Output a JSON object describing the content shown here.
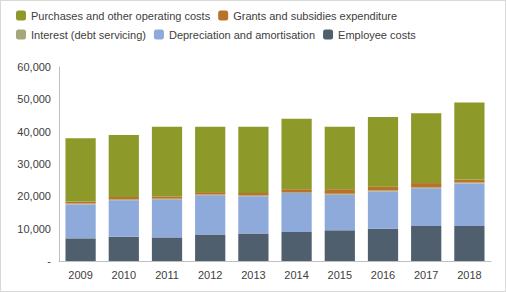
{
  "chart_data": {
    "type": "bar",
    "stacked": true,
    "grid": false,
    "legend": "top",
    "categories": [
      "2009",
      "2010",
      "2011",
      "2012",
      "2013",
      "2014",
      "2015",
      "2016",
      "2017",
      "2018"
    ],
    "series": [
      {
        "name": "Employee costs",
        "color": "#505f6e",
        "values": [
          7000,
          7500,
          7300,
          8200,
          8500,
          9000,
          9500,
          10000,
          10800,
          10800
        ]
      },
      {
        "name": "Depreciation and amortisation",
        "color": "#8eaadb",
        "values": [
          10500,
          11300,
          11700,
          12100,
          11500,
          12000,
          11000,
          11500,
          11700,
          13200
        ]
      },
      {
        "name": "Interest (debt servicing)",
        "color": "#a5a77a",
        "values": [
          300,
          300,
          300,
          300,
          300,
          300,
          300,
          300,
          300,
          300
        ]
      },
      {
        "name": "Grants and subsidies expenditure",
        "color": "#b8722a",
        "values": [
          600,
          700,
          700,
          700,
          700,
          900,
          1400,
          1200,
          1300,
          900
        ]
      },
      {
        "name": "Purchases and other operating costs",
        "color": "#8d9a2a",
        "values": [
          19600,
          19200,
          21500,
          20200,
          20500,
          21800,
          19300,
          21500,
          21600,
          23800
        ]
      }
    ],
    "ylim": [
      0,
      60000
    ],
    "yticks": [
      {
        "value": 0,
        "label": "-"
      },
      {
        "value": 10000,
        "label": "10,000"
      },
      {
        "value": 20000,
        "label": "20,000"
      },
      {
        "value": 30000,
        "label": "30,000"
      },
      {
        "value": 40000,
        "label": "40,000"
      },
      {
        "value": 50000,
        "label": "50,000"
      },
      {
        "value": 60000,
        "label": "60,000"
      }
    ]
  }
}
